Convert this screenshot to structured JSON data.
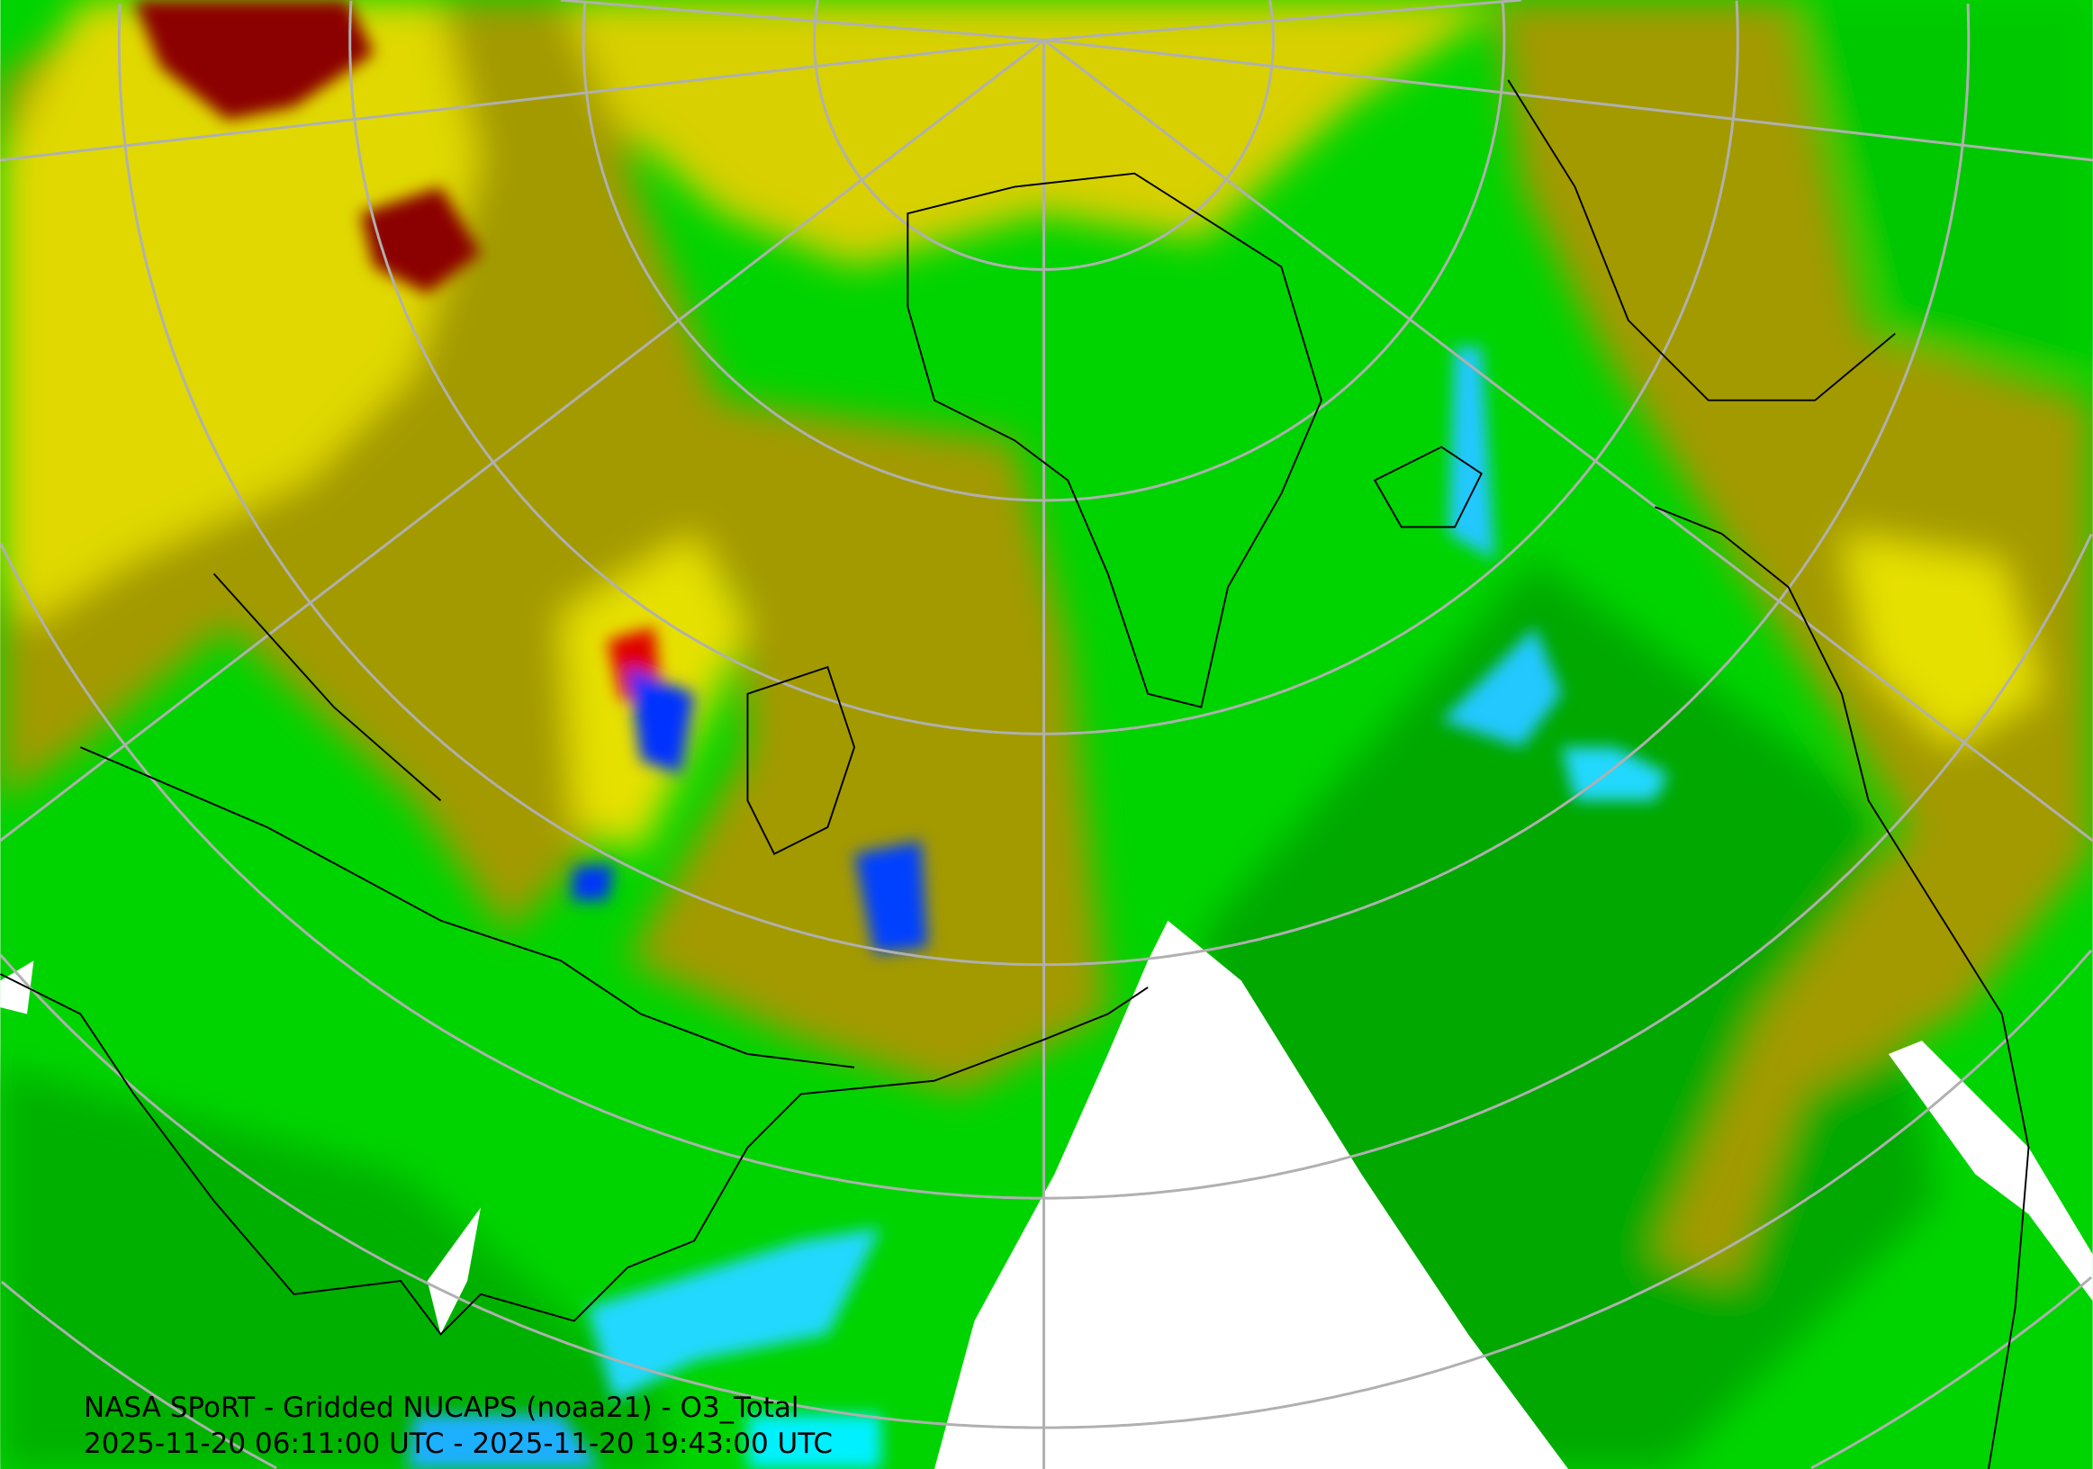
{
  "title": "NASA SPoRT - Gridded NUCAPS (noaa21) - O3_Total",
  "time_range": "2025-11-20 06:11:00 UTC - 2025-11-20 19:43:00 UTC",
  "colors": {
    "green": "#00d400",
    "dark_green": "#00a000",
    "olive": "#a39a00",
    "yellow": "#e6e000",
    "dark_red": "#8b0000",
    "red": "#e00000",
    "cyan": "#20d8ff",
    "blue": "#0030ff",
    "no_data": "#ffffff",
    "grid": "#b0b0b0",
    "coastline": "#000000"
  }
}
